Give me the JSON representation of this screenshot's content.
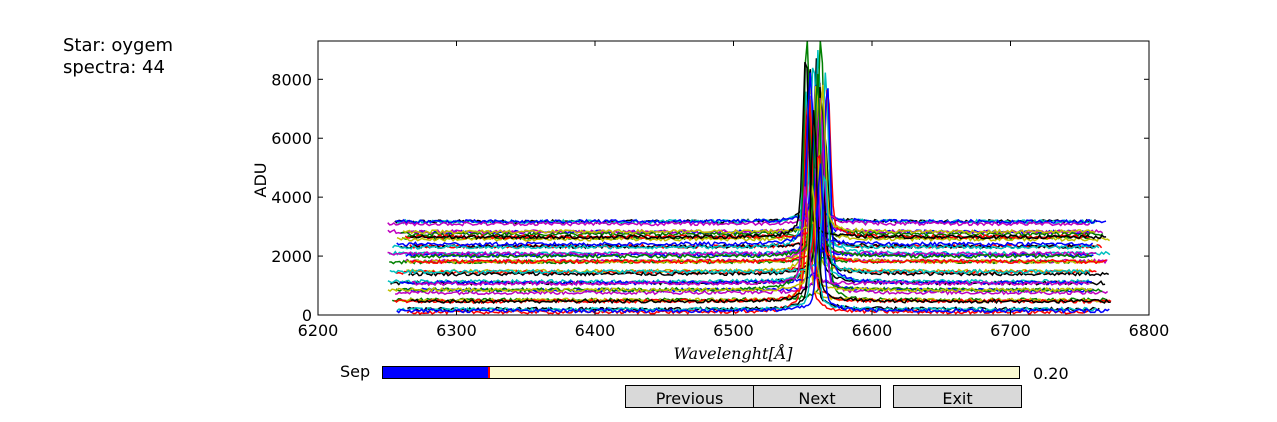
{
  "info": {
    "star": "Star: oygem",
    "spectra": "spectra: 44"
  },
  "slider": {
    "label": "Sep",
    "value_text": "0.20",
    "value": 0.2,
    "min": 0,
    "max": 1.2,
    "fill_color": "#0000ff",
    "track_color": "#fafad2",
    "marker_color": "#ff0000"
  },
  "buttons": {
    "previous": "Previous",
    "next": "Next",
    "exit": "Exit"
  },
  "chart_data": {
    "type": "line",
    "title": "",
    "xlabel": "Wavelenght[Å]",
    "ylabel": "ADU",
    "xlim": [
      6200,
      6800
    ],
    "ylim": [
      0,
      9300
    ],
    "xticks": [
      "6200",
      "6300",
      "6400",
      "6500",
      "6600",
      "6700",
      "6800"
    ],
    "yticks": [
      "0",
      "2000",
      "4000",
      "6000",
      "8000"
    ],
    "series_count": 44,
    "series_x_range": [
      6250,
      6775
    ],
    "continuum_baselines": [
      3150,
      2800,
      2600,
      2350,
      2050,
      1800,
      1450,
      1100,
      800,
      450,
      150
    ],
    "peak_wavelengths": [
      6553,
      6557,
      6560,
      6563,
      6566
    ],
    "peak_heights": [
      9200,
      8600,
      8000,
      9250,
      8900
    ],
    "grid": false,
    "legend": "none",
    "colors": [
      "#000000",
      "#0000ff",
      "#008000",
      "#ff0000",
      "#00bfbf",
      "#bf00bf",
      "#bfbf00"
    ]
  }
}
